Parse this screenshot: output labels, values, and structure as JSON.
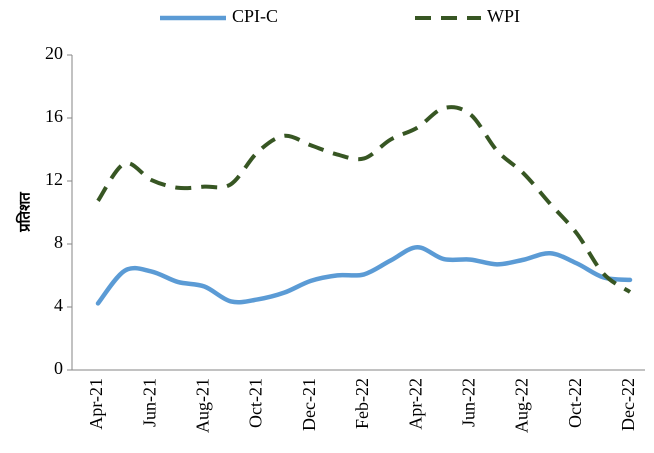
{
  "chart_data": {
    "type": "line",
    "y_label": "प्रतिशत",
    "categories": [
      "Apr-21",
      null,
      "Jun-21",
      null,
      "Aug-21",
      null,
      "Oct-21",
      null,
      "Dec-21",
      null,
      "Feb-22",
      null,
      "Apr-22",
      null,
      "Jun-22",
      null,
      "Aug-22",
      null,
      "Oct-22",
      null,
      "Dec-22"
    ],
    "series": [
      {
        "name": "CPI-C",
        "color": "#5b9bd5",
        "dashed": false,
        "values": [
          4.23,
          6.3,
          6.26,
          5.59,
          5.3,
          4.35,
          4.48,
          4.91,
          5.66,
          6.01,
          6.07,
          6.95,
          7.79,
          7.04,
          7.01,
          6.71,
          7.0,
          7.41,
          6.77,
          5.88,
          5.72
        ]
      },
      {
        "name": "WPI",
        "color": "#375623",
        "dashed": true,
        "values": [
          10.74,
          13.11,
          12.07,
          11.57,
          11.64,
          11.8,
          13.83,
          14.87,
          14.27,
          13.68,
          13.43,
          14.63,
          15.38,
          16.63,
          16.23,
          13.93,
          12.48,
          10.55,
          8.67,
          6.12,
          4.95
        ]
      }
    ],
    "ylim": [
      0,
      20
    ],
    "yticks": [
      0,
      4,
      8,
      12,
      16,
      20
    ],
    "legend": "top"
  }
}
